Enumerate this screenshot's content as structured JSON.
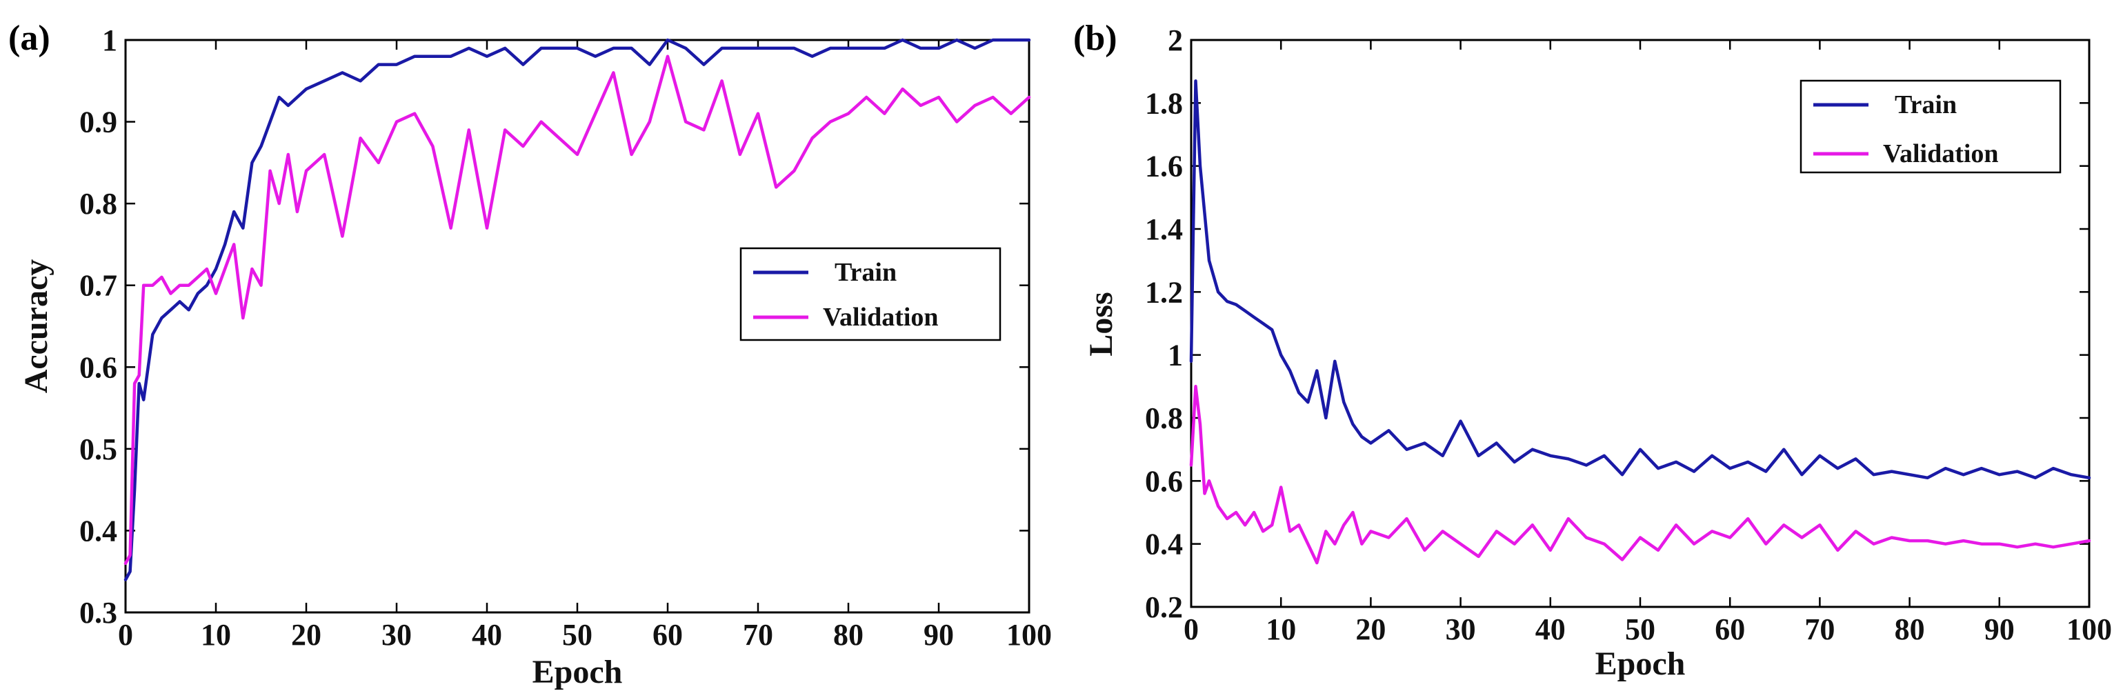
{
  "colors": {
    "train": "#1a1aa6",
    "validation": "#e619e6"
  },
  "chart_data": [
    {
      "type": "line",
      "panel_label": "(a)",
      "xlabel": "Epoch",
      "ylabel": "Accuracy",
      "xlim": [
        0,
        100
      ],
      "ylim": [
        0.3,
        1
      ],
      "xticks": [
        0,
        10,
        20,
        30,
        40,
        50,
        60,
        70,
        80,
        90,
        100
      ],
      "xtick_labels": [
        "0",
        "10",
        "20",
        "30",
        "40",
        "50",
        "60",
        "70",
        "80",
        "90",
        "100"
      ],
      "yticks": [
        0.3,
        0.4,
        0.5,
        0.6,
        0.7,
        0.8,
        0.9,
        1
      ],
      "ytick_labels": [
        "0.3",
        "0.4",
        "0.5",
        "0.6",
        "0.7",
        "0.8",
        "0.9",
        "1"
      ],
      "legend": {
        "position": "center-right",
        "entries": [
          "Train",
          "Validation"
        ]
      },
      "x": [
        0,
        0.5,
        1,
        1.5,
        2,
        3,
        4,
        5,
        6,
        7,
        8,
        9,
        10,
        11,
        12,
        13,
        14,
        15,
        16,
        17,
        18,
        19,
        20,
        22,
        24,
        26,
        28,
        30,
        32,
        34,
        36,
        38,
        40,
        42,
        44,
        46,
        48,
        50,
        52,
        54,
        56,
        58,
        60,
        62,
        64,
        66,
        68,
        70,
        72,
        74,
        76,
        78,
        80,
        82,
        84,
        86,
        88,
        90,
        92,
        94,
        96,
        98,
        100
      ],
      "series": [
        {
          "name": "Train",
          "color_key": "train",
          "values": [
            0.34,
            0.35,
            0.45,
            0.58,
            0.56,
            0.64,
            0.66,
            0.67,
            0.68,
            0.67,
            0.69,
            0.7,
            0.72,
            0.75,
            0.79,
            0.77,
            0.85,
            0.87,
            0.9,
            0.93,
            0.92,
            0.93,
            0.94,
            0.95,
            0.96,
            0.95,
            0.97,
            0.97,
            0.98,
            0.98,
            0.98,
            0.99,
            0.98,
            0.99,
            0.97,
            0.99,
            0.99,
            0.99,
            0.98,
            0.99,
            0.99,
            0.97,
            1.0,
            0.99,
            0.97,
            0.99,
            0.99,
            0.99,
            0.99,
            0.99,
            0.98,
            0.99,
            0.99,
            0.99,
            0.99,
            1.0,
            0.99,
            0.99,
            1.0,
            0.99,
            1.0,
            1.0,
            1.0
          ]
        },
        {
          "name": "Validation",
          "color_key": "validation",
          "values": [
            0.36,
            0.37,
            0.58,
            0.59,
            0.7,
            0.7,
            0.71,
            0.69,
            0.7,
            0.7,
            0.71,
            0.72,
            0.69,
            0.72,
            0.75,
            0.66,
            0.72,
            0.7,
            0.84,
            0.8,
            0.86,
            0.79,
            0.84,
            0.86,
            0.76,
            0.88,
            0.85,
            0.9,
            0.91,
            0.87,
            0.77,
            0.89,
            0.77,
            0.89,
            0.87,
            0.9,
            0.88,
            0.86,
            0.91,
            0.96,
            0.86,
            0.9,
            0.98,
            0.9,
            0.89,
            0.95,
            0.86,
            0.91,
            0.82,
            0.84,
            0.88,
            0.9,
            0.91,
            0.93,
            0.91,
            0.94,
            0.92,
            0.93,
            0.9,
            0.92,
            0.93,
            0.91,
            0.93
          ]
        }
      ]
    },
    {
      "type": "line",
      "panel_label": "(b)",
      "xlabel": "Epoch",
      "ylabel": "Loss",
      "xlim": [
        0,
        100
      ],
      "ylim": [
        0.2,
        2
      ],
      "xticks": [
        0,
        10,
        20,
        30,
        40,
        50,
        60,
        70,
        80,
        90,
        100
      ],
      "xtick_labels": [
        "0",
        "10",
        "20",
        "30",
        "40",
        "50",
        "60",
        "70",
        "80",
        "90",
        "100"
      ],
      "yticks": [
        0.2,
        0.4,
        0.6,
        0.8,
        1,
        1.2,
        1.4,
        1.6,
        1.8,
        2
      ],
      "ytick_labels": [
        "0.2",
        "0.4",
        "0.6",
        "0.8",
        "1",
        "1.2",
        "1.4",
        "1.6",
        "1.8",
        "2"
      ],
      "legend": {
        "position": "top-right",
        "entries": [
          "Train",
          "Validation"
        ]
      },
      "x": [
        0,
        0.5,
        1,
        1.5,
        2,
        3,
        4,
        5,
        6,
        7,
        8,
        9,
        10,
        11,
        12,
        13,
        14,
        15,
        16,
        17,
        18,
        19,
        20,
        22,
        24,
        26,
        28,
        30,
        32,
        34,
        36,
        38,
        40,
        42,
        44,
        46,
        48,
        50,
        52,
        54,
        56,
        58,
        60,
        62,
        64,
        66,
        68,
        70,
        72,
        74,
        76,
        78,
        80,
        82,
        84,
        86,
        88,
        90,
        92,
        94,
        96,
        98,
        100
      ],
      "series": [
        {
          "name": "Train",
          "color_key": "train",
          "values": [
            0.98,
            1.87,
            1.6,
            1.45,
            1.3,
            1.2,
            1.17,
            1.16,
            1.14,
            1.12,
            1.1,
            1.08,
            1.0,
            0.95,
            0.88,
            0.85,
            0.95,
            0.8,
            0.98,
            0.85,
            0.78,
            0.74,
            0.72,
            0.76,
            0.7,
            0.72,
            0.68,
            0.79,
            0.68,
            0.72,
            0.66,
            0.7,
            0.68,
            0.67,
            0.65,
            0.68,
            0.62,
            0.7,
            0.64,
            0.66,
            0.63,
            0.68,
            0.64,
            0.66,
            0.63,
            0.7,
            0.62,
            0.68,
            0.64,
            0.67,
            0.62,
            0.63,
            0.62,
            0.61,
            0.64,
            0.62,
            0.64,
            0.62,
            0.63,
            0.61,
            0.64,
            0.62,
            0.61
          ]
        },
        {
          "name": "Validation",
          "color_key": "validation",
          "values": [
            0.65,
            0.9,
            0.78,
            0.56,
            0.6,
            0.52,
            0.48,
            0.5,
            0.46,
            0.5,
            0.44,
            0.46,
            0.58,
            0.44,
            0.46,
            0.4,
            0.34,
            0.44,
            0.4,
            0.46,
            0.5,
            0.4,
            0.44,
            0.42,
            0.48,
            0.38,
            0.44,
            0.4,
            0.36,
            0.44,
            0.4,
            0.46,
            0.38,
            0.48,
            0.42,
            0.4,
            0.35,
            0.42,
            0.38,
            0.46,
            0.4,
            0.44,
            0.42,
            0.48,
            0.4,
            0.46,
            0.42,
            0.46,
            0.38,
            0.44,
            0.4,
            0.42,
            0.41,
            0.41,
            0.4,
            0.41,
            0.4,
            0.4,
            0.39,
            0.4,
            0.39,
            0.4,
            0.41
          ]
        }
      ]
    }
  ]
}
